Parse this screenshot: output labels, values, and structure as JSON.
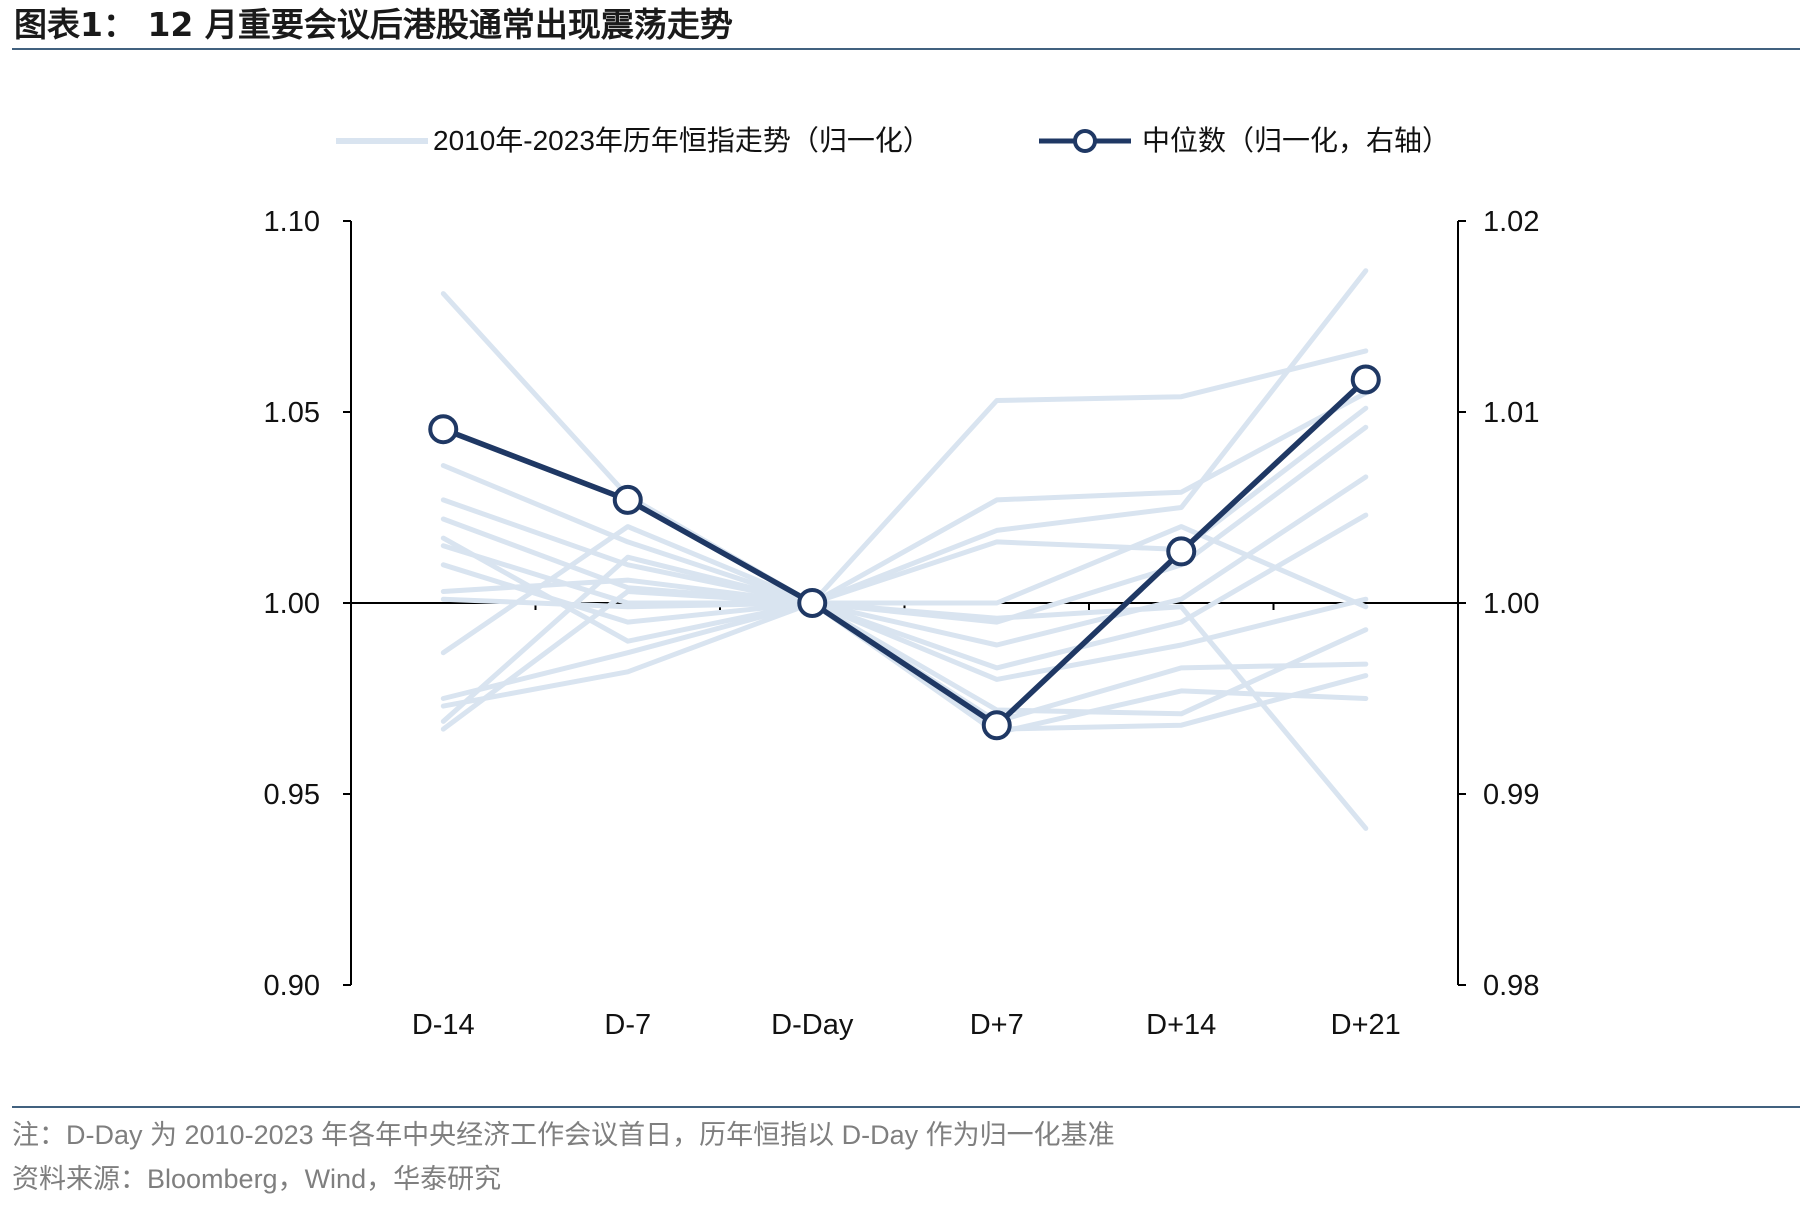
{
  "colors": {
    "title_rule": "#41617f",
    "hsi_line": "#d9e4f0",
    "median_line": "#1f3864",
    "axis": "#000000",
    "footnote_text": "#7f7f7f"
  },
  "chart_data": {
    "type": "line",
    "title": "图表1： 12 月重要会议后港股通常出现震荡走势",
    "xlabel": "",
    "ylabel": "",
    "categories": [
      "D-14",
      "D-7",
      "D-Day",
      "D+7",
      "D+14",
      "D+21"
    ],
    "ylim": [
      0.9,
      1.1
    ],
    "y2lim": [
      0.98,
      1.02
    ],
    "y_ticks": [
      "1.10",
      "1.05",
      "1.00",
      "0.95",
      "0.90"
    ],
    "y2_ticks": [
      "1.02",
      "1.01",
      "1.00",
      "0.99",
      "0.98"
    ],
    "x_axis_crosses_at": 1.0,
    "grid": false,
    "legend_position": "top",
    "series": [
      {
        "name": "2010年-2023年历年恒指走势（归一化）",
        "axis": "left",
        "lines": [
          [
            1.081,
            1.028,
            1.0,
            0.996,
            0.999,
            0.941
          ],
          [
            1.036,
            1.016,
            1.0,
            1.053,
            1.054,
            1.066
          ],
          [
            1.027,
            1.01,
            1.0,
            1.027,
            1.029,
            1.055
          ],
          [
            1.022,
            1.004,
            1.0,
            1.019,
            1.025,
            1.087
          ],
          [
            1.017,
            0.99,
            1.0,
            1.016,
            1.014,
            1.051
          ],
          [
            1.015,
            1.0,
            1.0,
            0.995,
            1.01,
            1.046
          ],
          [
            1.003,
            1.006,
            1.0,
            0.989,
            1.001,
            1.033
          ],
          [
            1.001,
            0.999,
            1.0,
            0.983,
            0.995,
            1.023
          ],
          [
            0.987,
            1.02,
            1.0,
            0.98,
            0.989,
            1.001
          ],
          [
            0.975,
            0.987,
            1.0,
            0.972,
            0.971,
            0.993
          ],
          [
            0.973,
            0.982,
            1.0,
            0.969,
            0.983,
            0.984
          ],
          [
            0.967,
            1.003,
            1.0,
            0.967,
            0.968,
            0.981
          ],
          [
            0.969,
            1.012,
            1.0,
            0.966,
            0.977,
            0.975
          ],
          [
            1.01,
            0.995,
            1.0,
            1.0,
            1.02,
            0.999
          ]
        ]
      },
      {
        "name": "中位数（归一化，右轴）",
        "axis": "right",
        "values": [
          1.0091,
          1.0054,
          1.0,
          0.9936,
          1.0027,
          1.0117
        ]
      }
    ]
  },
  "footer": {
    "note": "注：D-Day 为 2010-2023 年各年中央经济工作会议首日，历年恒指以 D-Day 作为归一化基准",
    "source": "资料来源：Bloomberg，Wind，华泰研究"
  }
}
